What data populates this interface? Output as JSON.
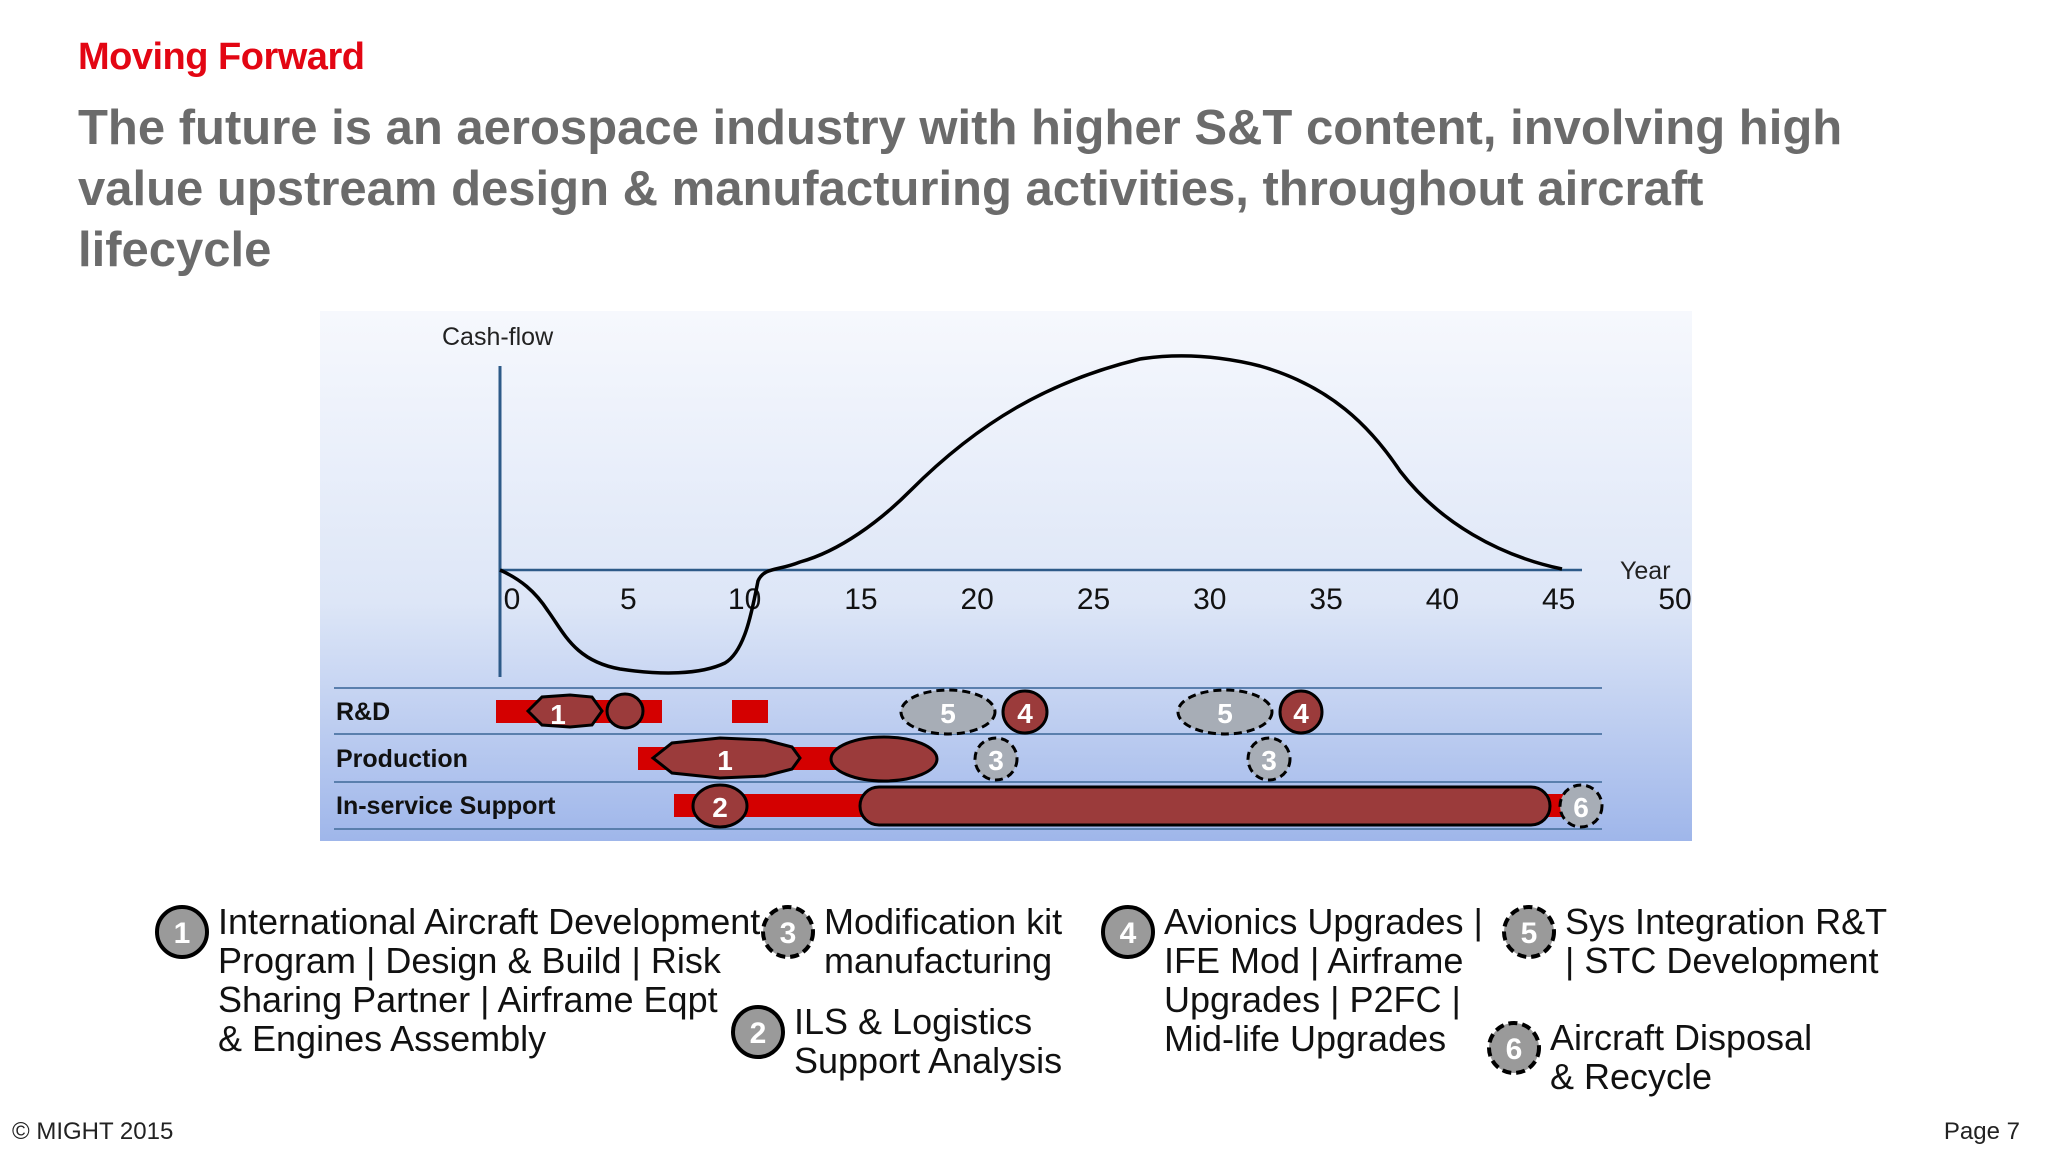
{
  "section_label": "Moving Forward",
  "headline": {
    "line1": "The future is an aerospace industry with higher S&T content, involving high",
    "line2": "value upstream design & manufacturing activities, throughout aircraft",
    "line3": "lifecycle"
  },
  "diagram": {
    "y_axis_label": "Cash-flow",
    "x_axis_label": "Year",
    "x_ticks": [
      "0",
      "5",
      "10",
      "15",
      "20",
      "25",
      "30",
      "35",
      "40",
      "45",
      "50"
    ],
    "rows": [
      {
        "label": "R&D"
      },
      {
        "label": "Production"
      },
      {
        "label": "In-service Support"
      }
    ],
    "markers": {
      "rd_1": "1",
      "rd_5a": "5",
      "rd_4a": "4",
      "rd_5b": "5",
      "rd_4b": "4",
      "prod_1": "1",
      "prod_3a": "3",
      "prod_3b": "3",
      "iss_2": "2",
      "iss_6": "6"
    }
  },
  "legend": [
    {
      "number": "1",
      "lines": [
        "International Aircraft Development",
        "Program | Design & Build | Risk",
        "Sharing Partner | Airframe Eqpt",
        "& Engines Assembly"
      ]
    },
    {
      "number": "3",
      "lines": [
        "Modification kit",
        "manufacturing"
      ]
    },
    {
      "number": "2",
      "lines": [
        "ILS & Logistics",
        "Support Analysis"
      ]
    },
    {
      "number": "4",
      "lines": [
        "Avionics Upgrades |",
        "IFE Mod | Airframe",
        "Upgrades | P2FC |",
        "Mid-life Upgrades"
      ]
    },
    {
      "number": "5",
      "lines": [
        "Sys Integration R&T",
        "| STC Development"
      ]
    },
    {
      "number": "6",
      "lines": [
        "Aircraft Disposal",
        "& Recycle"
      ]
    }
  ],
  "footer": {
    "copyright": "© MIGHT 2015",
    "page": "Page 7"
  },
  "colors": {
    "accent_red": "#e30613",
    "bar_red": "#d40000",
    "ellipse_fill": "#9b3b3b",
    "dashed_fill": "#a7adb6",
    "badge_fill": "#9a9a9a",
    "heading_gray": "#6b6b6b"
  }
}
